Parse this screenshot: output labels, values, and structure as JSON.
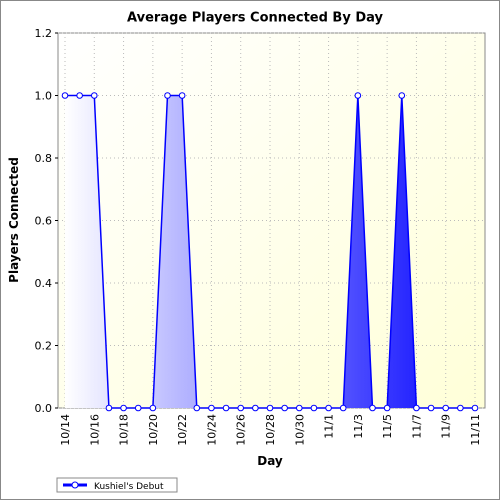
{
  "chart_data": {
    "type": "area",
    "title": "Average Players Connected By Day",
    "x_label": "Day",
    "y_label": "Players Connected",
    "categories": [
      "10/14",
      null,
      "10/16",
      null,
      "10/18",
      null,
      "10/20",
      null,
      "10/22",
      null,
      "10/24",
      null,
      "10/26",
      null,
      "10/28",
      null,
      "10/30",
      null,
      "11/1",
      null,
      "11/3",
      null,
      "11/5",
      null,
      "11/7",
      null,
      "11/9",
      null,
      "11/11"
    ],
    "series": [
      {
        "name": "Kushiel's Debut",
        "color": "#0000ff",
        "values": [
          1,
          1,
          1,
          0,
          0,
          0,
          0,
          1,
          1,
          0,
          0,
          0,
          0,
          0,
          0,
          0,
          0,
          0,
          0,
          0,
          1,
          0,
          0,
          1,
          0,
          0,
          0,
          0,
          0
        ]
      }
    ],
    "ylim": [
      0,
      1.2
    ],
    "yticks": [
      {
        "value": 0,
        "label": "0.0"
      },
      {
        "value": 0.2,
        "label": "0.2"
      },
      {
        "value": 0.4,
        "label": "0.4"
      },
      {
        "value": 0.6,
        "label": "0.6"
      },
      {
        "value": 0.8,
        "label": "0.8"
      },
      {
        "value": 1,
        "label": "1.0"
      },
      {
        "value": 1.2,
        "label": "1.2"
      }
    ],
    "grid": true
  }
}
